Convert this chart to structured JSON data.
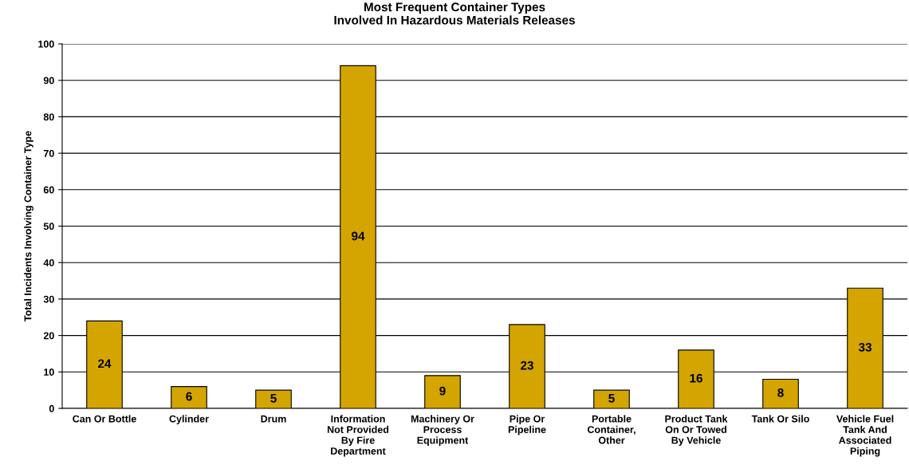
{
  "chart_data": {
    "type": "bar",
    "title": "Most Frequent Container Types\nInvolved In Hazardous Materials Releases",
    "ylabel": "Total Incidents Involving Container Type",
    "categories": [
      "Can Or Bottle",
      "Cylinder",
      "Drum",
      "Information\nNot Provided\nBy Fire\nDepartment",
      "Machinery Or\nProcess\nEquipment",
      "Pipe Or\nPipeline",
      "Portable\nContainer,\nOther",
      "Product Tank\nOn Or Towed\nBy Vehicle",
      "Tank Or Silo",
      "Vehicle Fuel\nTank And\nAssociated\nPiping"
    ],
    "values": [
      24,
      6,
      5,
      94,
      9,
      23,
      5,
      16,
      8,
      33
    ],
    "color": "#d4a500",
    "ylim": [
      0,
      100
    ],
    "yticks": [
      0,
      10,
      20,
      30,
      40,
      50,
      60,
      70,
      80,
      90,
      100
    ],
    "grid": "y",
    "data_labels": true
  }
}
